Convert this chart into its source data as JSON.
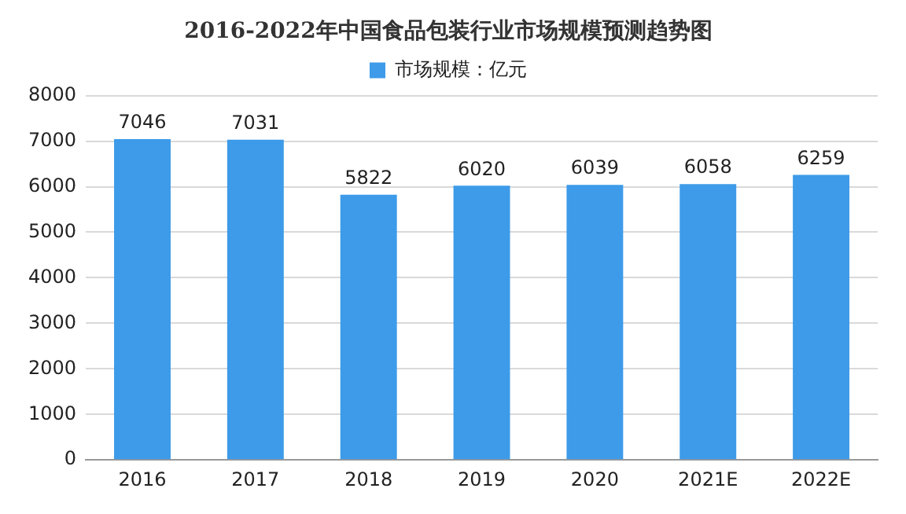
{
  "chart_data": {
    "type": "bar",
    "title": "2016-2022年中国食品包装行业市场规模预测趋势图",
    "categories": [
      "2016",
      "2017",
      "2018",
      "2019",
      "2020",
      "2021E",
      "2022E"
    ],
    "series": [
      {
        "name": "市场规模：亿元",
        "color": "#3d9be9",
        "values": [
          7046,
          7031,
          5822,
          6020,
          6039,
          6058,
          6259
        ]
      }
    ],
    "ylim": [
      0,
      8000
    ],
    "yticks": [
      0,
      1000,
      2000,
      3000,
      4000,
      5000,
      6000,
      7000,
      8000
    ],
    "grid": "y",
    "legend": "top",
    "data_labels": true
  }
}
